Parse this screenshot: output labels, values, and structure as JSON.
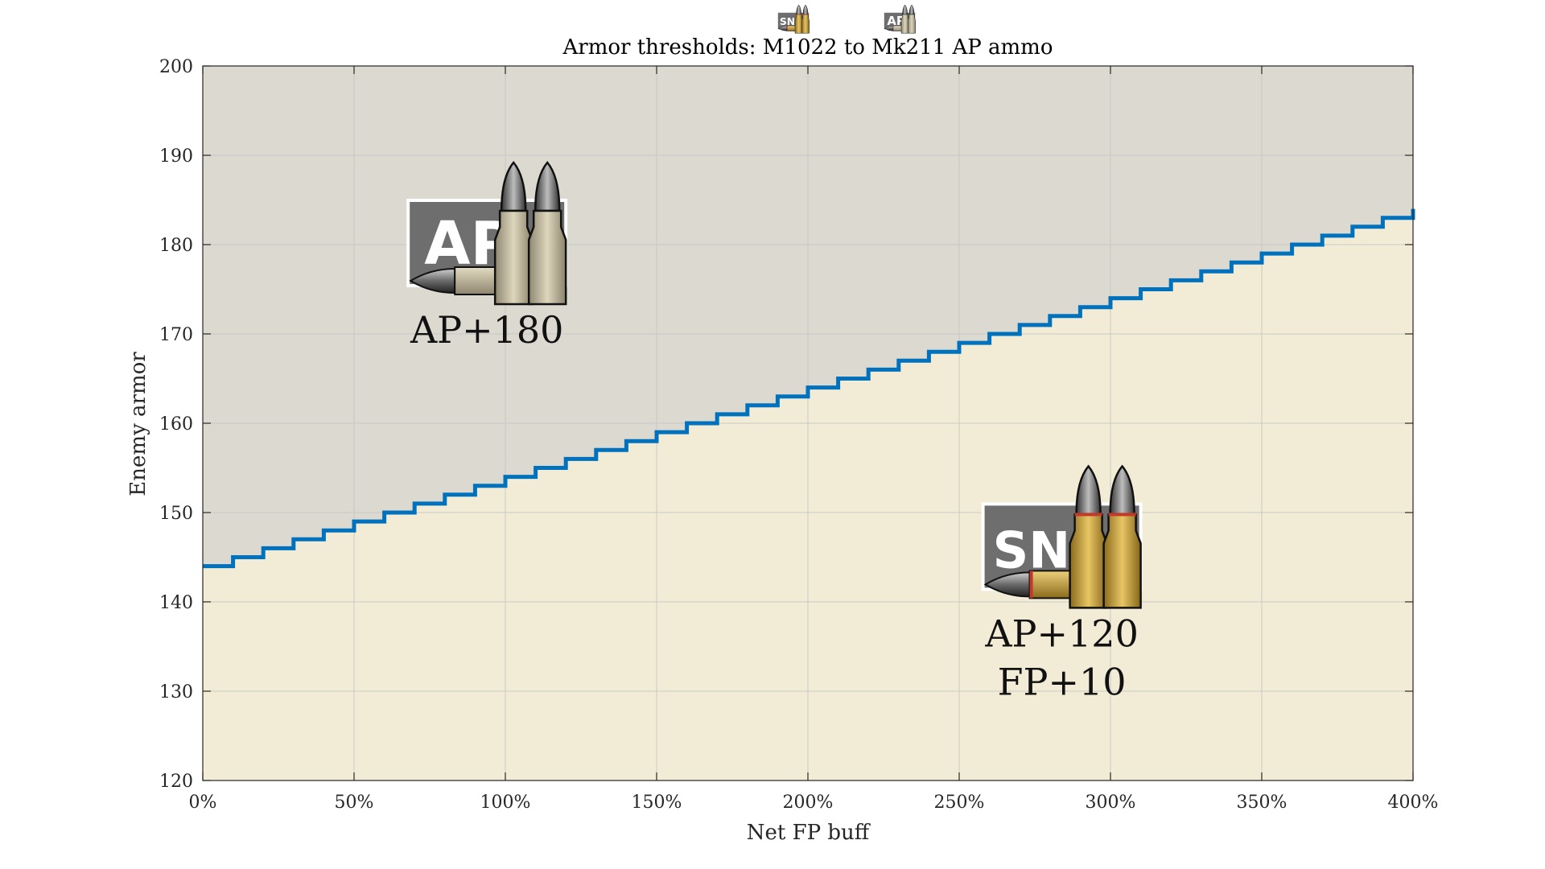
{
  "chart_data": {
    "type": "line",
    "title": "Armor thresholds: M1022 to Mk211 AP ammo",
    "xlabel": "Net FP buff",
    "ylabel": "Enemy armor",
    "xlim": [
      0,
      400
    ],
    "ylim": [
      120,
      200
    ],
    "x_ticks": [
      0,
      50,
      100,
      150,
      200,
      250,
      300,
      350,
      400
    ],
    "x_tick_labels": [
      "0%",
      "50%",
      "100%",
      "150%",
      "200%",
      "250%",
      "300%",
      "350%",
      "400%"
    ],
    "y_ticks": [
      120,
      130,
      140,
      150,
      160,
      170,
      180,
      190,
      200
    ],
    "y_tick_labels": [
      "120",
      "130",
      "140",
      "150",
      "160",
      "170",
      "180",
      "190",
      "200"
    ],
    "grid": true,
    "series": [
      {
        "style": "step",
        "x": [
          0,
          10,
          20,
          30,
          40,
          50,
          60,
          70,
          80,
          90,
          100,
          110,
          120,
          130,
          140,
          150,
          160,
          170,
          180,
          190,
          200,
          210,
          220,
          230,
          240,
          250,
          260,
          270,
          280,
          290,
          300,
          310,
          320,
          330,
          340,
          350,
          360,
          370,
          380,
          390,
          400
        ],
        "y": [
          144,
          145,
          146,
          147,
          148,
          149,
          150,
          151,
          152,
          153,
          154,
          155,
          156,
          157,
          158,
          159,
          160,
          161,
          162,
          163,
          164,
          165,
          166,
          167,
          168,
          169,
          170,
          171,
          172,
          173,
          174,
          175,
          176,
          177,
          178,
          179,
          180,
          181,
          182,
          183,
          184
        ]
      }
    ],
    "regions": [
      {
        "position": "above",
        "color": "#dcd9d0"
      },
      {
        "position": "below",
        "color": "#f2ebd5"
      }
    ],
    "annotations": [
      {
        "badge": "AP",
        "lines": [
          "AP+180"
        ],
        "x": 95,
        "y": 180
      },
      {
        "badge": "SNI",
        "lines": [
          "AP+120",
          "FP+10"
        ],
        "x": 285,
        "y": 146
      }
    ],
    "legend_icons": [
      {
        "badge": "SNI"
      },
      {
        "badge": "AP"
      }
    ],
    "colors": {
      "line": "#0072bd",
      "region_above": "#dcd9d0",
      "region_below": "#f2ebd5",
      "grid": "#c8c8c8",
      "axis": "#262626",
      "badge_bg": "#6e6e6e"
    }
  }
}
